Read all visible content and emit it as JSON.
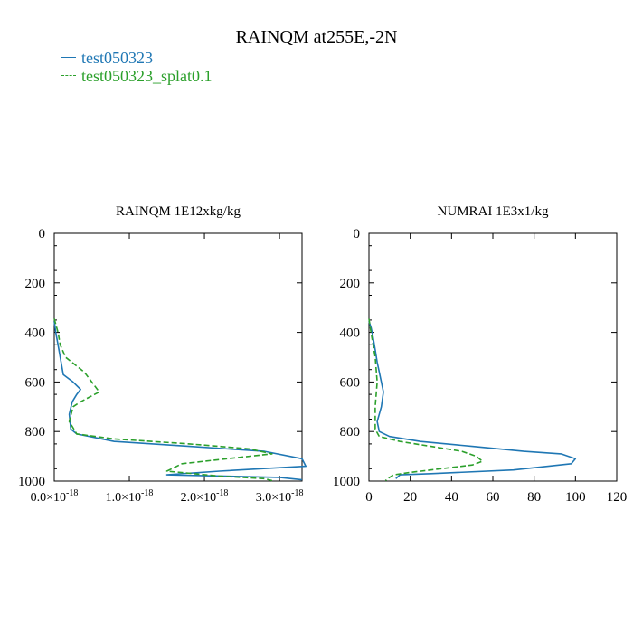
{
  "page": {
    "title": "RAINQM at255E,-2N"
  },
  "legend": [
    {
      "label": "test050323",
      "color": "#1f77b4",
      "dash": "solid"
    },
    {
      "label": "test050323_splat0.1",
      "color": "#2ca02c",
      "dash": "dashed"
    }
  ],
  "chart_data": [
    {
      "type": "line",
      "title": "RAINQM  1E12xkg/kg",
      "xlabel": "",
      "ylabel": "",
      "xlim": [
        0.0,
        3.3
      ],
      "ylim": [
        1000,
        0
      ],
      "y_inverted": true,
      "x_ticks": [
        0.0,
        1.0,
        2.0,
        3.0
      ],
      "x_tick_labels": [
        {
          "mant": "0.0×10",
          "exp": "-18"
        },
        {
          "mant": "1.0×10",
          "exp": "-18"
        },
        {
          "mant": "2.0×10",
          "exp": "-18"
        },
        {
          "mant": "3.0×10",
          "exp": "-18"
        }
      ],
      "y_ticks": [
        0,
        200,
        400,
        600,
        800,
        1000
      ],
      "y_tick_labels": [
        "0",
        "200",
        "400",
        "600",
        "800",
        "1000"
      ],
      "series": [
        {
          "name": "test050323",
          "color": "#1f77b4",
          "dash": "solid",
          "x": [
            0.0,
            0.02,
            0.05,
            0.08,
            0.12,
            0.25,
            0.35,
            0.3,
            0.24,
            0.2,
            0.22,
            0.3,
            0.8,
            1.8,
            2.8,
            3.3,
            3.35,
            2.2,
            1.5,
            3.0,
            3.3
          ],
          "y": [
            355,
            400,
            450,
            500,
            570,
            600,
            630,
            650,
            680,
            730,
            790,
            810,
            840,
            860,
            880,
            910,
            940,
            960,
            975,
            985,
            995
          ]
        },
        {
          "name": "test050323_splat0.1",
          "color": "#2ca02c",
          "dash": "dashed",
          "x": [
            0.0,
            0.05,
            0.08,
            0.15,
            0.4,
            0.6,
            0.35,
            0.25,
            0.2,
            0.3,
            0.8,
            1.8,
            2.6,
            2.9,
            2.3,
            1.7,
            1.5,
            2.2,
            2.8,
            2.9
          ],
          "y": [
            345,
            400,
            450,
            500,
            560,
            640,
            680,
            700,
            760,
            810,
            830,
            850,
            870,
            890,
            910,
            930,
            960,
            980,
            990,
            998
          ]
        }
      ]
    },
    {
      "type": "line",
      "title": "NUMRAI  1E3x1/kg",
      "xlabel": "",
      "ylabel": "",
      "xlim": [
        0,
        120
      ],
      "ylim": [
        1000,
        0
      ],
      "y_inverted": true,
      "x_ticks": [
        0,
        20,
        40,
        60,
        80,
        100,
        120
      ],
      "x_tick_labels": [
        "0",
        "20",
        "40",
        "60",
        "80",
        "100",
        "120"
      ],
      "y_ticks": [
        0,
        200,
        400,
        600,
        800,
        1000
      ],
      "y_tick_labels": [
        "0",
        "200",
        "400",
        "600",
        "800",
        "1000"
      ],
      "series": [
        {
          "name": "test050323",
          "color": "#1f77b4",
          "dash": "solid",
          "x": [
            0,
            1,
            2,
            3,
            4,
            5,
            6,
            7,
            6,
            4,
            5,
            10,
            25,
            50,
            75,
            93,
            100,
            98,
            70,
            30,
            15,
            13
          ],
          "y": [
            355,
            380,
            420,
            470,
            520,
            560,
            600,
            640,
            700,
            760,
            800,
            820,
            840,
            860,
            880,
            890,
            910,
            930,
            955,
            970,
            975,
            990
          ]
        },
        {
          "name": "test050323_splat0.1",
          "color": "#2ca02c",
          "dash": "dashed",
          "x": [
            0,
            1,
            2,
            3,
            4,
            3,
            3,
            5,
            15,
            30,
            45,
            52,
            55,
            50,
            35,
            20,
            12,
            10,
            8
          ],
          "y": [
            345,
            400,
            450,
            500,
            600,
            700,
            790,
            820,
            840,
            860,
            880,
            900,
            920,
            935,
            950,
            965,
            975,
            985,
            998
          ]
        }
      ]
    }
  ]
}
